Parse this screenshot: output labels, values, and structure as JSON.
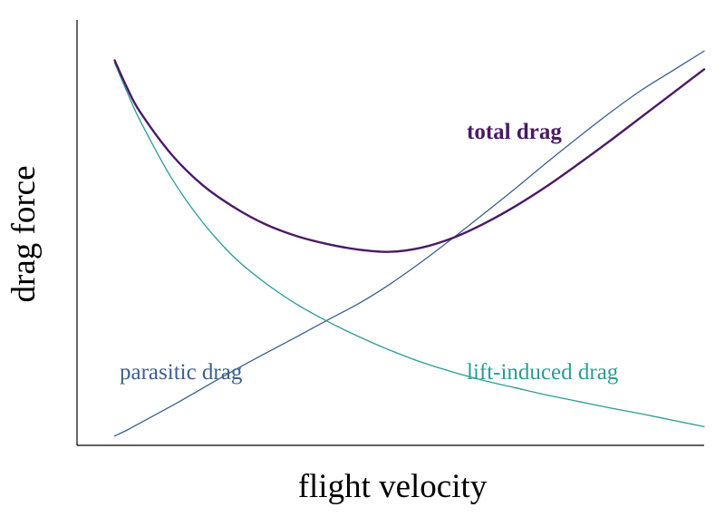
{
  "chart_data": {
    "type": "line",
    "title": "",
    "xlabel": "flight velocity",
    "ylabel": "drag force",
    "xlim": [
      0,
      10
    ],
    "ylim": [
      0,
      10
    ],
    "grid": false,
    "x": [
      0.6,
      0.8,
      1.0,
      1.5,
      2.0,
      2.5,
      3.0,
      3.5,
      4.0,
      4.5,
      5.0,
      5.5,
      6.0,
      6.5,
      7.0,
      7.5,
      8.0,
      8.5,
      9.0,
      9.5,
      10.0
    ],
    "series": [
      {
        "name": "parasitic drag",
        "color": "#3b5f8f",
        "values": [
          0.22,
          0.36,
          0.52,
          0.92,
          1.34,
          1.76,
          2.16,
          2.55,
          2.95,
          3.34,
          3.8,
          4.32,
          4.88,
          5.46,
          6.05,
          6.66,
          7.25,
          7.82,
          8.35,
          8.81,
          9.27
        ]
      },
      {
        "name": "lift-induced drag",
        "color": "#2b9c94",
        "values": [
          8.99,
          8.3,
          7.65,
          6.3,
          5.25,
          4.43,
          3.82,
          3.32,
          2.91,
          2.55,
          2.23,
          1.95,
          1.72,
          1.52,
          1.35,
          1.18,
          1.03,
          0.88,
          0.74,
          0.59,
          0.44
        ]
      },
      {
        "name": "total drag",
        "color": "#4a1a66",
        "values": [
          9.05,
          8.4,
          7.85,
          6.85,
          6.12,
          5.6,
          5.2,
          4.92,
          4.73,
          4.6,
          4.55,
          4.65,
          4.88,
          5.22,
          5.63,
          6.1,
          6.62,
          7.16,
          7.72,
          8.28,
          8.84
        ]
      }
    ]
  }
}
